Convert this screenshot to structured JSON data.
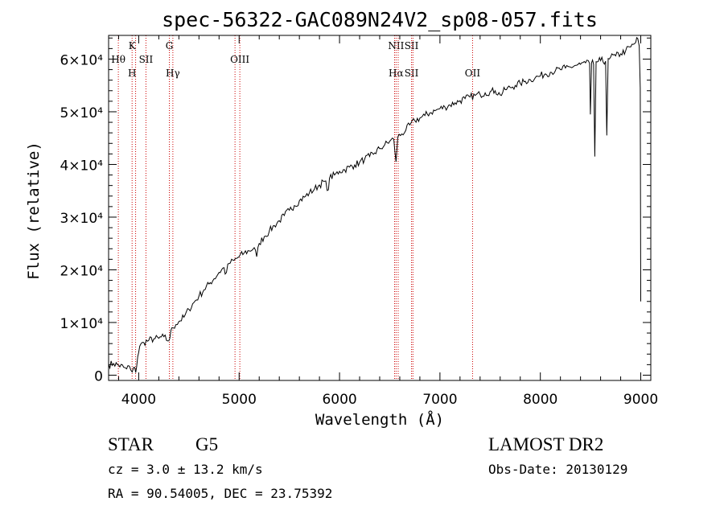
{
  "chart_data": {
    "type": "line",
    "title": "spec-56322-GAC089N24V2_sp08-057.fits",
    "xlabel": "Wavelength (Å)",
    "ylabel": "Flux (relative)",
    "xlim": [
      3700,
      9100
    ],
    "ylim": [
      -1000,
      64500
    ],
    "x_ticks": [
      {
        "value": 4000,
        "label": "4000"
      },
      {
        "value": 5000,
        "label": "5000"
      },
      {
        "value": 6000,
        "label": "6000"
      },
      {
        "value": 7000,
        "label": "7000"
      },
      {
        "value": 8000,
        "label": "8000"
      },
      {
        "value": 9000,
        "label": "9000"
      }
    ],
    "y_ticks": [
      {
        "value": 0,
        "label": "0"
      },
      {
        "value": 10000,
        "label": "1×10⁴"
      },
      {
        "value": 20000,
        "label": "2×10⁴"
      },
      {
        "value": 30000,
        "label": "3×10⁴"
      },
      {
        "value": 40000,
        "label": "4×10⁴"
      },
      {
        "value": 50000,
        "label": "5×10⁴"
      },
      {
        "value": 60000,
        "label": "6×10⁴"
      }
    ],
    "grid": false,
    "line_color": "#000000",
    "marker_color": "#cc0000",
    "series": [
      {
        "points": [
          [
            3700,
            2000
          ],
          [
            3750,
            2200
          ],
          [
            3800,
            1900
          ],
          [
            3850,
            1500
          ],
          [
            3880,
            1200
          ],
          [
            3900,
            1800
          ],
          [
            3920,
            1000
          ],
          [
            3935,
            600
          ],
          [
            3950,
            1500
          ],
          [
            3970,
            500
          ],
          [
            3990,
            3500
          ],
          [
            4010,
            5500
          ],
          [
            4050,
            6200
          ],
          [
            4100,
            6600
          ],
          [
            4150,
            6900
          ],
          [
            4200,
            7000
          ],
          [
            4250,
            7300
          ],
          [
            4290,
            6500
          ],
          [
            4310,
            7000
          ],
          [
            4330,
            9000
          ],
          [
            4370,
            9600
          ],
          [
            4400,
            10200
          ],
          [
            4450,
            11000
          ],
          [
            4500,
            12500
          ],
          [
            4550,
            13800
          ],
          [
            4600,
            15000
          ],
          [
            4650,
            16200
          ],
          [
            4700,
            17300
          ],
          [
            4750,
            18300
          ],
          [
            4800,
            19500
          ],
          [
            4850,
            20400
          ],
          [
            4861,
            19200
          ],
          [
            4900,
            21200
          ],
          [
            4950,
            21800
          ],
          [
            5000,
            22500
          ],
          [
            5050,
            23200
          ],
          [
            5100,
            23600
          ],
          [
            5150,
            24200
          ],
          [
            5175,
            22500
          ],
          [
            5200,
            25000
          ],
          [
            5250,
            26300
          ],
          [
            5300,
            27300
          ],
          [
            5350,
            28400
          ],
          [
            5400,
            29300
          ],
          [
            5450,
            30300
          ],
          [
            5500,
            31300
          ],
          [
            5550,
            32200
          ],
          [
            5600,
            33100
          ],
          [
            5650,
            33800
          ],
          [
            5700,
            34600
          ],
          [
            5750,
            35300
          ],
          [
            5800,
            36100
          ],
          [
            5850,
            36800
          ],
          [
            5890,
            35200
          ],
          [
            5900,
            37400
          ],
          [
            5950,
            38000
          ],
          [
            6000,
            38700
          ],
          [
            6050,
            39000
          ],
          [
            6100,
            39500
          ],
          [
            6150,
            39900
          ],
          [
            6200,
            40400
          ],
          [
            6250,
            41000
          ],
          [
            6300,
            41500
          ],
          [
            6350,
            42200
          ],
          [
            6400,
            43000
          ],
          [
            6450,
            43700
          ],
          [
            6500,
            44400
          ],
          [
            6540,
            44800
          ],
          [
            6563,
            40500
          ],
          [
            6580,
            45200
          ],
          [
            6620,
            45800
          ],
          [
            6660,
            46500
          ],
          [
            6700,
            47500
          ],
          [
            6750,
            48300
          ],
          [
            6800,
            48800
          ],
          [
            6850,
            49300
          ],
          [
            6900,
            49800
          ],
          [
            6950,
            50200
          ],
          [
            7000,
            50600
          ],
          [
            7050,
            50900
          ],
          [
            7100,
            51300
          ],
          [
            7150,
            51700
          ],
          [
            7200,
            52100
          ],
          [
            7250,
            52500
          ],
          [
            7300,
            52800
          ],
          [
            7350,
            53100
          ],
          [
            7400,
            53300
          ],
          [
            7450,
            53600
          ],
          [
            7500,
            53800
          ],
          [
            7550,
            54000
          ],
          [
            7600,
            53200
          ],
          [
            7650,
            54200
          ],
          [
            7700,
            54600
          ],
          [
            7750,
            55000
          ],
          [
            7800,
            55400
          ],
          [
            7850,
            55800
          ],
          [
            7900,
            56100
          ],
          [
            7950,
            56500
          ],
          [
            8000,
            56800
          ],
          [
            8050,
            57200
          ],
          [
            8100,
            57500
          ],
          [
            8150,
            57800
          ],
          [
            8200,
            58000
          ],
          [
            8250,
            58300
          ],
          [
            8300,
            58500
          ],
          [
            8350,
            58800
          ],
          [
            8400,
            59000
          ],
          [
            8450,
            59300
          ],
          [
            8490,
            59200
          ],
          [
            8498,
            49500
          ],
          [
            8510,
            59300
          ],
          [
            8530,
            59000
          ],
          [
            8542,
            41500
          ],
          [
            8555,
            59500
          ],
          [
            8600,
            59700
          ],
          [
            8650,
            59600
          ],
          [
            8662,
            45500
          ],
          [
            8675,
            60100
          ],
          [
            8700,
            60400
          ],
          [
            8750,
            60600
          ],
          [
            8800,
            61000
          ],
          [
            8850,
            61600
          ],
          [
            8900,
            62300
          ],
          [
            8950,
            63200
          ],
          [
            8970,
            63900
          ],
          [
            8985,
            62500
          ],
          [
            8995,
            54500
          ],
          [
            9000,
            14000
          ]
        ]
      }
    ],
    "line_markers": [
      {
        "x": 3797,
        "labels": [
          "Hθ"
        ],
        "pos": "upper"
      },
      {
        "x": 3934,
        "labels": [
          "K",
          "H"
        ],
        "pos": "split"
      },
      {
        "x": 3969,
        "labels": [],
        "pos": "none"
      },
      {
        "x": 4072,
        "labels": [
          "SII"
        ],
        "pos": "upper2"
      },
      {
        "x": 4305,
        "labels": [
          "G"
        ],
        "pos": "top"
      },
      {
        "x": 4340,
        "labels": [
          "Hγ"
        ],
        "pos": "lower"
      },
      {
        "x": 4959,
        "labels": [],
        "pos": "none"
      },
      {
        "x": 5007,
        "labels": [
          "OIII"
        ],
        "pos": "upper2"
      },
      {
        "x": 6548,
        "labels": [],
        "pos": "none"
      },
      {
        "x": 6563,
        "labels": [
          "NII",
          "Hα"
        ],
        "pos": "split"
      },
      {
        "x": 6584,
        "labels": [],
        "pos": "none"
      },
      {
        "x": 6717,
        "labels": [
          "SII",
          "SII"
        ],
        "pos": "split"
      },
      {
        "x": 6731,
        "labels": [],
        "pos": "none"
      },
      {
        "x": 7325,
        "labels": [
          "OII"
        ],
        "pos": "lower"
      }
    ]
  },
  "info": {
    "object_class": "STAR",
    "subclass": "G5",
    "survey": "LAMOST DR2",
    "redshift": "cz = 3.0 ± 13.2 km/s",
    "obs_date": "Obs-Date: 20130129",
    "coords": "RA =  90.54005, DEC =  23.75392"
  }
}
